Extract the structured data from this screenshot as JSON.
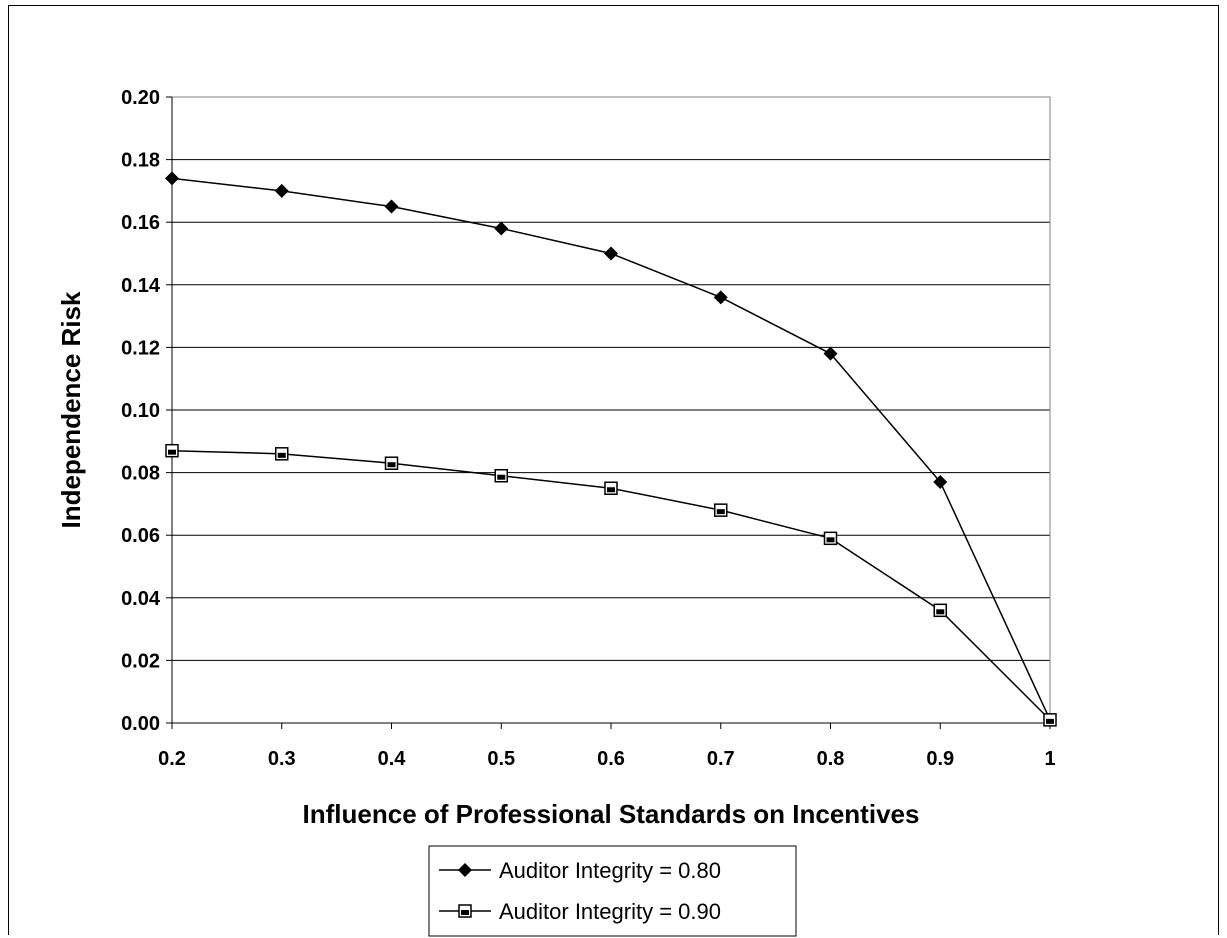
{
  "chart_data": {
    "type": "line",
    "title": "",
    "xlabel": "Influence of Professional Standards on Incentives",
    "ylabel": "Independence Risk",
    "x": [
      0.2,
      0.3,
      0.4,
      0.5,
      0.6,
      0.7,
      0.8,
      0.9,
      1
    ],
    "x_tick_labels": [
      "0.2",
      "0.3",
      "0.4",
      "0.5",
      "0.6",
      "0.7",
      "0.8",
      "0.9",
      "1"
    ],
    "y_tick_labels": [
      "0.00",
      "0.02",
      "0.04",
      "0.06",
      "0.08",
      "0.10",
      "0.12",
      "0.14",
      "0.16",
      "0.18",
      "0.20"
    ],
    "xlim": [
      0.2,
      1
    ],
    "ylim": [
      0,
      0.2
    ],
    "grid": "horizontal",
    "legend_position": "bottom",
    "series": [
      {
        "name": "Auditor Integrity = 0.80",
        "marker": "diamond",
        "color": "#000000",
        "values": [
          0.174,
          0.17,
          0.165,
          0.158,
          0.15,
          0.136,
          0.118,
          0.077,
          0.001
        ]
      },
      {
        "name": "Auditor Integrity = 0.90",
        "marker": "square",
        "color": "#000000",
        "values": [
          0.087,
          0.086,
          0.083,
          0.079,
          0.075,
          0.068,
          0.059,
          0.036,
          0.001
        ]
      }
    ]
  }
}
